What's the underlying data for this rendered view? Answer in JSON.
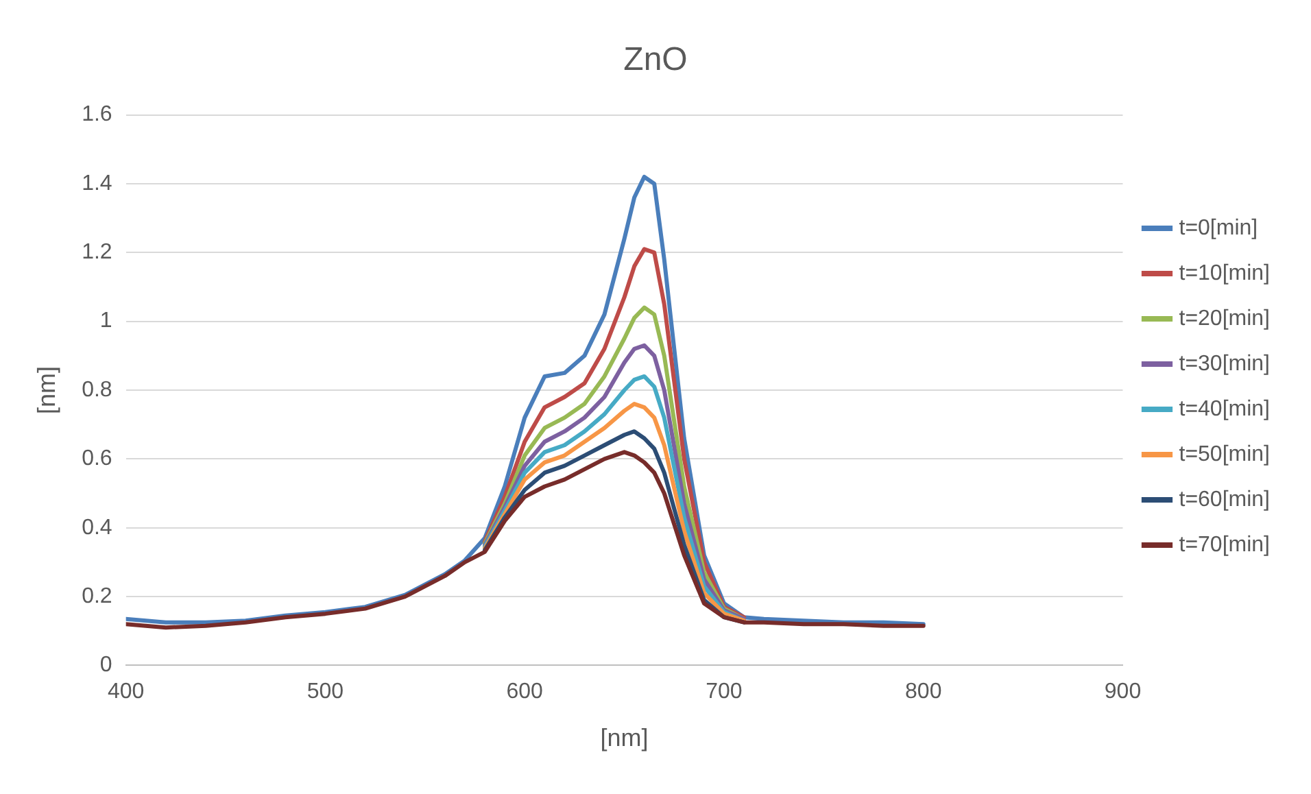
{
  "chart_data": {
    "type": "line",
    "title": "ZnO",
    "xlabel": "[nm]",
    "ylabel": "[nm]",
    "x": [
      400,
      420,
      440,
      460,
      480,
      500,
      520,
      540,
      560,
      570,
      580,
      590,
      600,
      610,
      620,
      630,
      640,
      650,
      655,
      660,
      665,
      670,
      680,
      690,
      700,
      710,
      720,
      740,
      760,
      780,
      800
    ],
    "xlim": [
      400,
      900
    ],
    "xticks": [
      400,
      500,
      600,
      700,
      800,
      900
    ],
    "ylim": [
      0,
      1.6
    ],
    "yticks": [
      0,
      0.2,
      0.4,
      0.6,
      0.8,
      1,
      1.2,
      1.4,
      1.6
    ],
    "grid": "y",
    "legend": "right",
    "marker": "none",
    "line_style": "solid",
    "series": [
      {
        "name": "t=0[min]",
        "color": "#4a7ebb",
        "values": [
          0.135,
          0.125,
          0.125,
          0.13,
          0.145,
          0.155,
          0.17,
          0.205,
          0.265,
          0.305,
          0.37,
          0.52,
          0.72,
          0.84,
          0.85,
          0.9,
          1.02,
          1.24,
          1.36,
          1.42,
          1.4,
          1.18,
          0.66,
          0.32,
          0.18,
          0.14,
          0.135,
          0.13,
          0.125,
          0.125,
          0.12
        ]
      },
      {
        "name": "t=10[min]",
        "color": "#be4b48",
        "values": [
          null,
          null,
          null,
          null,
          null,
          null,
          null,
          null,
          null,
          null,
          0.36,
          0.49,
          0.65,
          0.75,
          0.78,
          0.82,
          0.92,
          1.07,
          1.16,
          1.21,
          1.2,
          1.05,
          0.6,
          0.3,
          0.17,
          0.14,
          null,
          null,
          null,
          null,
          null
        ]
      },
      {
        "name": "t=20[min]",
        "color": "#98b954",
        "values": [
          null,
          null,
          null,
          null,
          null,
          null,
          null,
          null,
          null,
          null,
          0.355,
          0.47,
          0.61,
          0.69,
          0.72,
          0.76,
          0.84,
          0.95,
          1.01,
          1.04,
          1.02,
          0.9,
          0.52,
          0.27,
          0.165,
          0.135,
          null,
          null,
          null,
          null,
          null
        ]
      },
      {
        "name": "t=30[min]",
        "color": "#7d60a0",
        "values": [
          null,
          null,
          null,
          null,
          null,
          null,
          null,
          null,
          null,
          null,
          0.35,
          0.46,
          0.58,
          0.65,
          0.68,
          0.72,
          0.78,
          0.88,
          0.92,
          0.93,
          0.9,
          0.8,
          0.47,
          0.25,
          0.16,
          0.135,
          null,
          null,
          null,
          null,
          null
        ]
      },
      {
        "name": "t=40[min]",
        "color": "#46aac5",
        "values": [
          null,
          null,
          null,
          null,
          null,
          null,
          null,
          null,
          null,
          null,
          0.345,
          0.45,
          0.56,
          0.62,
          0.64,
          0.68,
          0.73,
          0.8,
          0.83,
          0.84,
          0.81,
          0.72,
          0.43,
          0.23,
          0.155,
          0.13,
          null,
          null,
          null,
          null,
          null
        ]
      },
      {
        "name": "t=50[min]",
        "color": "#f79646",
        "values": [
          null,
          null,
          null,
          null,
          null,
          null,
          null,
          null,
          null,
          null,
          0.34,
          0.44,
          0.54,
          0.59,
          0.61,
          0.65,
          0.69,
          0.74,
          0.76,
          0.75,
          0.72,
          0.64,
          0.39,
          0.21,
          0.15,
          0.13,
          null,
          null,
          null,
          null,
          null
        ]
      },
      {
        "name": "t=60[min]",
        "color": "#2c4d75",
        "values": [
          null,
          null,
          null,
          null,
          null,
          null,
          null,
          null,
          null,
          null,
          0.335,
          0.43,
          0.51,
          0.56,
          0.58,
          0.61,
          0.64,
          0.67,
          0.68,
          0.66,
          0.63,
          0.56,
          0.35,
          0.19,
          0.14,
          0.125,
          null,
          null,
          null,
          null,
          null
        ]
      },
      {
        "name": "t=70[min]",
        "color": "#772c2a",
        "values": [
          0.12,
          0.11,
          0.115,
          0.125,
          0.14,
          0.15,
          0.165,
          0.2,
          0.26,
          0.3,
          0.33,
          0.42,
          0.49,
          0.52,
          0.54,
          0.57,
          0.6,
          0.62,
          0.61,
          0.59,
          0.56,
          0.5,
          0.32,
          0.18,
          0.14,
          0.125,
          0.125,
          0.12,
          0.12,
          0.115,
          0.115
        ]
      }
    ]
  }
}
